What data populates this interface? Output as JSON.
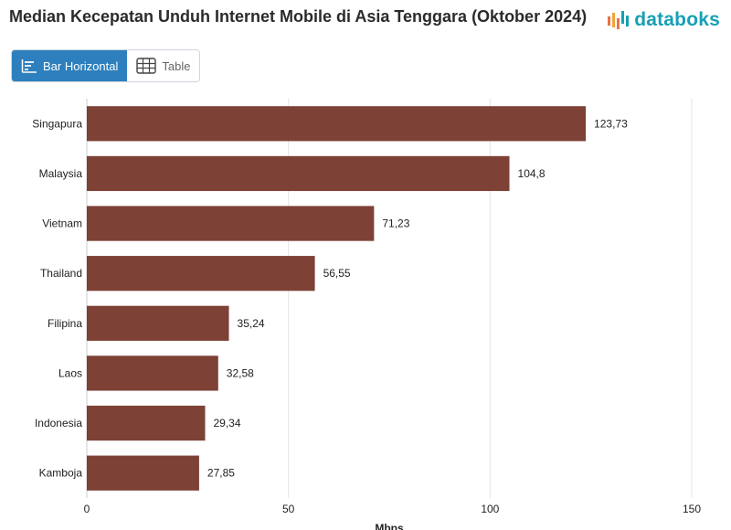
{
  "header": {
    "title": "Median Kecepatan Unduh Internet Mobile di Asia Tenggara (Oktober 2024)",
    "brand": "databoks"
  },
  "toggle": {
    "bar_label": "Bar Horizontal",
    "table_label": "Table"
  },
  "colors": {
    "bar": "#7d4136",
    "accent": "#2d7fbd",
    "brand": "#17a0b5"
  },
  "chart_data": {
    "type": "bar",
    "orientation": "horizontal",
    "categories": [
      "Singapura",
      "Malaysia",
      "Vietnam",
      "Thailand",
      "Filipina",
      "Laos",
      "Indonesia",
      "Kamboja"
    ],
    "values": [
      123.73,
      104.8,
      71.23,
      56.55,
      35.24,
      32.58,
      29.34,
      27.85
    ],
    "value_labels": [
      "123,73",
      "104,8",
      "71,23",
      "56,55",
      "35,24",
      "32,58",
      "29,34",
      "27,85"
    ],
    "xlabel": "Mbps",
    "xlim": [
      0,
      150
    ],
    "xticks": [
      0,
      50,
      100,
      150
    ],
    "grid": true
  }
}
